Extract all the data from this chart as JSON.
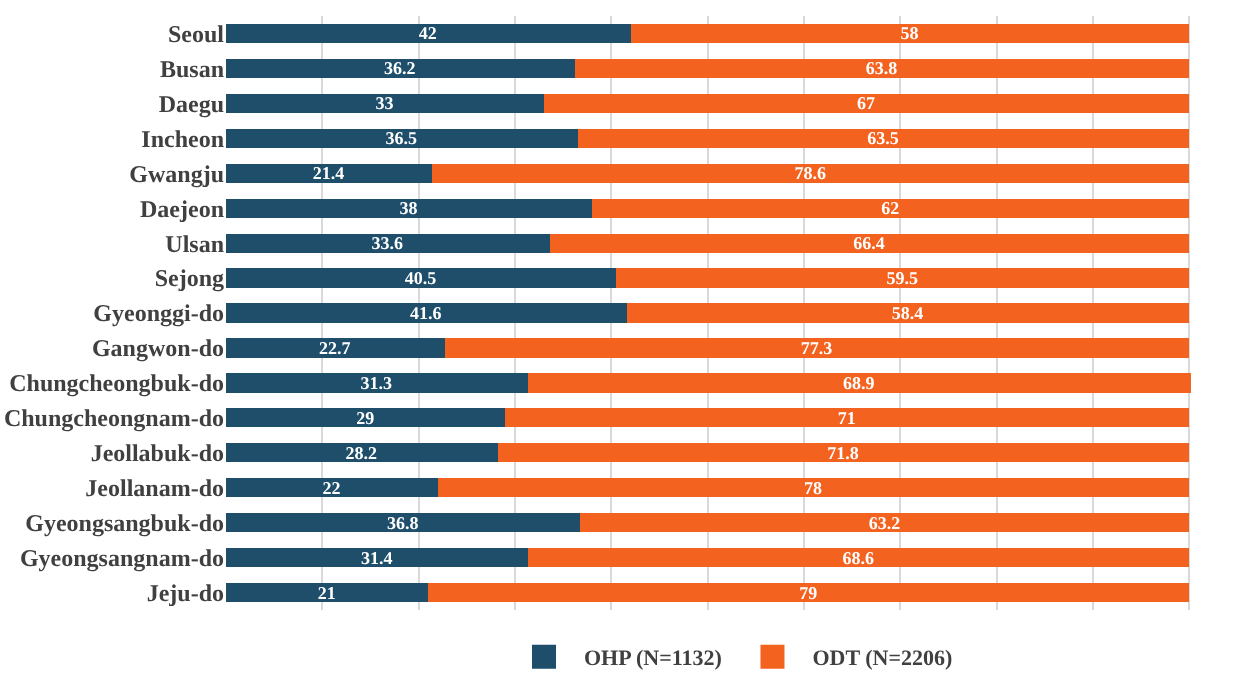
{
  "chart_data": {
    "type": "bar",
    "orientation": "horizontal",
    "stacked": true,
    "data_labels": true,
    "grid": "x",
    "legend": "bottom",
    "tick_labels": "y",
    "categories": [
      "Seoul",
      "Busan",
      "Daegu",
      "Incheon",
      "Gwangju",
      "Daejeon",
      "Ulsan",
      "Sejong",
      "Gyeonggi-do",
      "Gangwon-do",
      "Chungcheongbuk-do",
      "Chungcheongnam-do",
      "Jeollabuk-do",
      "Jeollanam-do",
      "Gyeongsangbuk-do",
      "Gyeongsangnam-do",
      "Jeju-do"
    ],
    "series": [
      {
        "name": "OHP (N=1132)",
        "color": "#1f4e6b",
        "values": [
          42,
          36.2,
          33,
          36.5,
          21.4,
          38,
          33.6,
          40.5,
          41.6,
          22.7,
          31.3,
          29,
          28.2,
          22,
          36.8,
          31.4,
          21
        ]
      },
      {
        "name": "ODT (N=2206)",
        "color": "#f4621f",
        "values": [
          58,
          63.8,
          67,
          63.5,
          78.6,
          62,
          66.4,
          59.5,
          58.4,
          77.3,
          68.9,
          71,
          71.8,
          78,
          63.2,
          68.6,
          79
        ]
      }
    ]
  }
}
